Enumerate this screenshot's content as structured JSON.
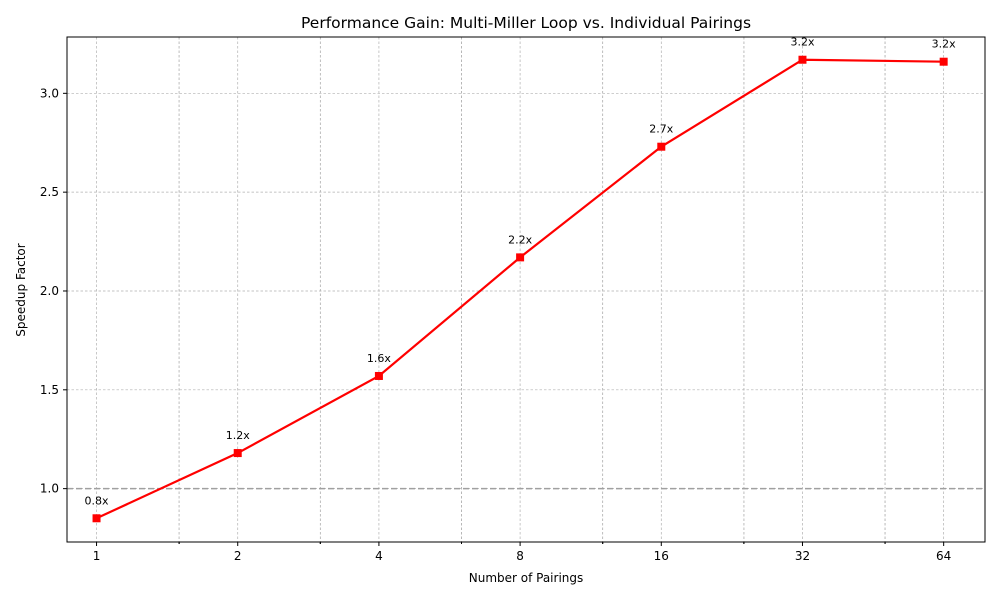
{
  "chart_data": {
    "type": "line",
    "title": "Performance Gain: Multi-Miller Loop vs. Individual Pairings",
    "xlabel": "Number of Pairings",
    "ylabel": "Speedup Factor",
    "x_scale": "log2",
    "xlim": [
      0.865,
      78.4
    ],
    "ylim": [
      0.73,
      3.285
    ],
    "x": [
      1,
      2,
      4,
      8,
      16,
      32,
      64
    ],
    "xtick_labels": [
      "1",
      "2",
      "4",
      "8",
      "16",
      "32",
      "64"
    ],
    "yticks": [
      1.0,
      1.5,
      2.0,
      2.5,
      3.0
    ],
    "ytick_labels": [
      "1.0",
      "1.5",
      "2.0",
      "2.5",
      "3.0"
    ],
    "series": [
      {
        "values": [
          0.85,
          1.18,
          1.57,
          2.17,
          2.73,
          3.17,
          3.16
        ],
        "data_labels": [
          "0.8x",
          "1.2x",
          "1.6x",
          "2.2x",
          "2.7x",
          "3.2x",
          "3.2x"
        ],
        "color": "#ff0000",
        "marker": "square"
      }
    ],
    "reference_line": {
      "y": 1.0,
      "color": "#a0a0a0",
      "style": "dashed"
    },
    "grid": true,
    "legend": "none"
  }
}
